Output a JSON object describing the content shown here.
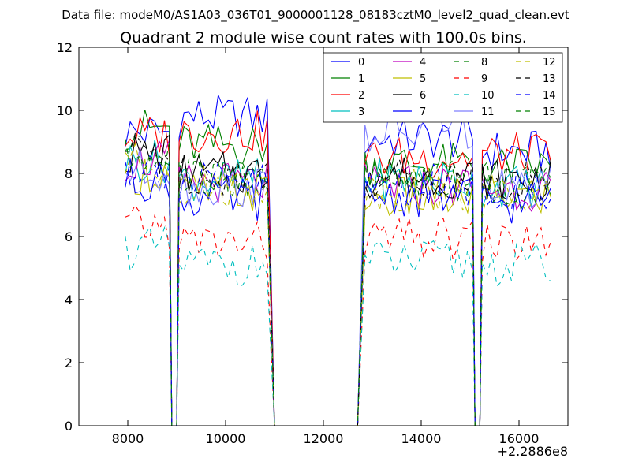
{
  "suptitle": "Data file: modeM0/AS1A03_036T01_9000001128_08183cztM0_level2_quad_clean.evt",
  "chart_data": {
    "type": "line",
    "title": "Quadrant 2 module wise count rates with 100.0s bins.",
    "xlabel": "",
    "ylabel": "",
    "x_offset_label": "+2.2886e8",
    "xlim": [
      7000,
      17000
    ],
    "ylim": [
      0,
      12
    ],
    "xticks": [
      8000,
      10000,
      12000,
      14000,
      16000
    ],
    "xtick_labels": [
      "8000",
      "10000",
      "12000",
      "14000",
      "16000"
    ],
    "yticks": [
      0,
      2,
      4,
      6,
      8,
      10,
      12
    ],
    "ytick_labels": [
      "0",
      "2",
      "4",
      "6",
      "8",
      "10",
      "12"
    ],
    "grid": false,
    "legend_position": "top-right",
    "legend_columns": 4,
    "series": [
      {
        "name": "0",
        "color": "#0000ff",
        "style": "solid",
        "base": [
          9.3,
          9.8,
          9.1,
          8.7
        ]
      },
      {
        "name": "1",
        "color": "#008000",
        "style": "solid",
        "base": [
          9.4,
          8.9,
          8.3,
          8.2
        ]
      },
      {
        "name": "2",
        "color": "#ff0000",
        "style": "solid",
        "base": [
          9.2,
          9.3,
          8.5,
          8.6
        ]
      },
      {
        "name": "3",
        "color": "#00bfbf",
        "style": "solid",
        "base": [
          8.4,
          7.8,
          7.8,
          7.6
        ]
      },
      {
        "name": "4",
        "color": "#bf00bf",
        "style": "solid",
        "base": [
          8.4,
          7.7,
          7.6,
          7.5
        ]
      },
      {
        "name": "5",
        "color": "#bfbf00",
        "style": "solid",
        "base": [
          8.0,
          7.4,
          7.2,
          7.3
        ]
      },
      {
        "name": "6",
        "color": "#000000",
        "style": "solid",
        "base": [
          8.6,
          8.0,
          7.9,
          7.8
        ]
      },
      {
        "name": "7",
        "color": "#0000ff",
        "style": "solid",
        "base": [
          7.8,
          7.2,
          7.3,
          7.1
        ]
      },
      {
        "name": "8",
        "color": "#008000",
        "style": "dashed",
        "base": [
          8.5,
          8.0,
          7.8,
          7.7
        ]
      },
      {
        "name": "9",
        "color": "#ff0000",
        "style": "dashed",
        "base": [
          6.3,
          5.8,
          5.9,
          5.8
        ]
      },
      {
        "name": "10",
        "color": "#00bfbf",
        "style": "dashed",
        "base": [
          5.6,
          5.1,
          5.2,
          5.1
        ]
      },
      {
        "name": "11",
        "color": "#7f7fff",
        "style": "solid",
        "base": [
          8.1,
          7.6,
          9.3,
          7.5
        ]
      },
      {
        "name": "12",
        "color": "#bfbf00",
        "style": "dashed",
        "base": [
          8.3,
          7.6,
          7.5,
          7.2
        ]
      },
      {
        "name": "13",
        "color": "#000000",
        "style": "dashed",
        "base": [
          8.7,
          8.0,
          7.9,
          7.8
        ]
      },
      {
        "name": "14",
        "color": "#0000ff",
        "style": "dashed",
        "base": [
          8.2,
          7.7,
          7.6,
          7.5
        ]
      },
      {
        "name": "15",
        "color": "#008000",
        "style": "dashed",
        "base": [
          8.4,
          7.8,
          7.8,
          7.5
        ]
      }
    ],
    "time_segments": [
      {
        "x_start": 7950,
        "x_end": 8850
      },
      {
        "x_start": 9050,
        "x_end": 10850
      },
      {
        "x_start": 12850,
        "x_end": 15050
      },
      {
        "x_start": 15250,
        "x_end": 16650
      }
    ],
    "gap_segments": [
      {
        "x_start": 8850,
        "x_end": 9050
      },
      {
        "x_start": 10950,
        "x_end": 12750
      },
      {
        "x_start": 15050,
        "x_end": 15250
      }
    ],
    "bin_width": 100
  }
}
